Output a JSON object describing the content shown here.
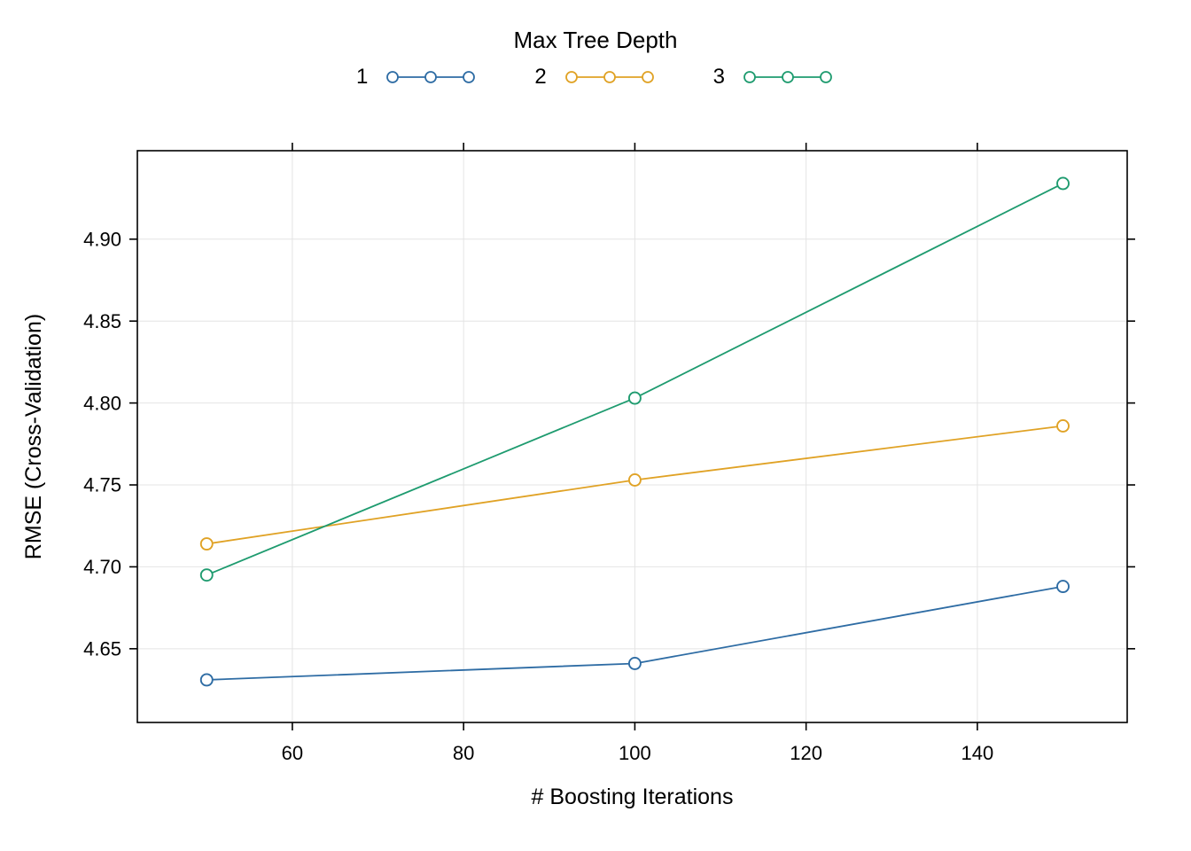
{
  "chart_data": {
    "type": "line",
    "title": "Max Tree Depth",
    "xlabel": "# Boosting Iterations",
    "ylabel": "RMSE (Cross-Validation)",
    "x": [
      50,
      100,
      150
    ],
    "series": [
      {
        "name": "1",
        "color": "#2E6CA4",
        "values": [
          4.631,
          4.641,
          4.688
        ]
      },
      {
        "name": "2",
        "color": "#E0A225",
        "values": [
          4.714,
          4.753,
          4.786
        ]
      },
      {
        "name": "3",
        "color": "#1E9B6F",
        "values": [
          4.695,
          4.803,
          4.934
        ]
      }
    ],
    "x_ticks": [
      60,
      80,
      100,
      120,
      140
    ],
    "x_tick_labels": [
      "60",
      "80",
      "100",
      "120",
      "140"
    ],
    "y_ticks": [
      4.65,
      4.7,
      4.75,
      4.8,
      4.85,
      4.9
    ],
    "y_tick_labels": [
      "4.65",
      "4.70",
      "4.75",
      "4.80",
      "4.85",
      "4.90"
    ],
    "xlim": [
      41.9,
      157.5
    ],
    "ylim": [
      4.605,
      4.954
    ],
    "grid": true,
    "grid_color": "#e4e4e4",
    "legend_position": "top",
    "marker": "open-circle"
  }
}
